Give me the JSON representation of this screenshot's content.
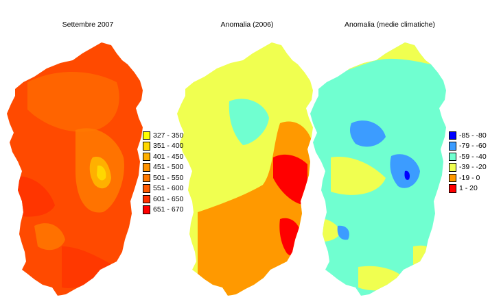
{
  "maps": [
    {
      "title": "Settembre 2007",
      "legend": [
        {
          "label": "327 - 350",
          "color": "#ffff00"
        },
        {
          "label": "351 - 400",
          "color": "#ffd800"
        },
        {
          "label": "401 - 450",
          "color": "#ffb000"
        },
        {
          "label": "451 - 500",
          "color": "#ff9400"
        },
        {
          "label": "501 - 550",
          "color": "#ff7a00"
        },
        {
          "label": "551 - 600",
          "color": "#ff5a00"
        },
        {
          "label": "601 - 650",
          "color": "#ff3000"
        },
        {
          "label": "651 - 670",
          "color": "#ff0000"
        }
      ]
    },
    {
      "title": "Anomalia (2006)"
    },
    {
      "title": "Anomalia (medie climatiche)",
      "legend": [
        {
          "label": "-85 - -80",
          "color": "#0000ff"
        },
        {
          "label": "-79 - -60",
          "color": "#3c9cff"
        },
        {
          "label": "-59 - -40",
          "color": "#70ffd0"
        },
        {
          "label": "-39 - -20",
          "color": "#f0ff50"
        },
        {
          "label": "-19 - 0",
          "color": "#ff9900"
        },
        {
          "label": "1 - 20",
          "color": "#ff0000"
        }
      ]
    }
  ]
}
